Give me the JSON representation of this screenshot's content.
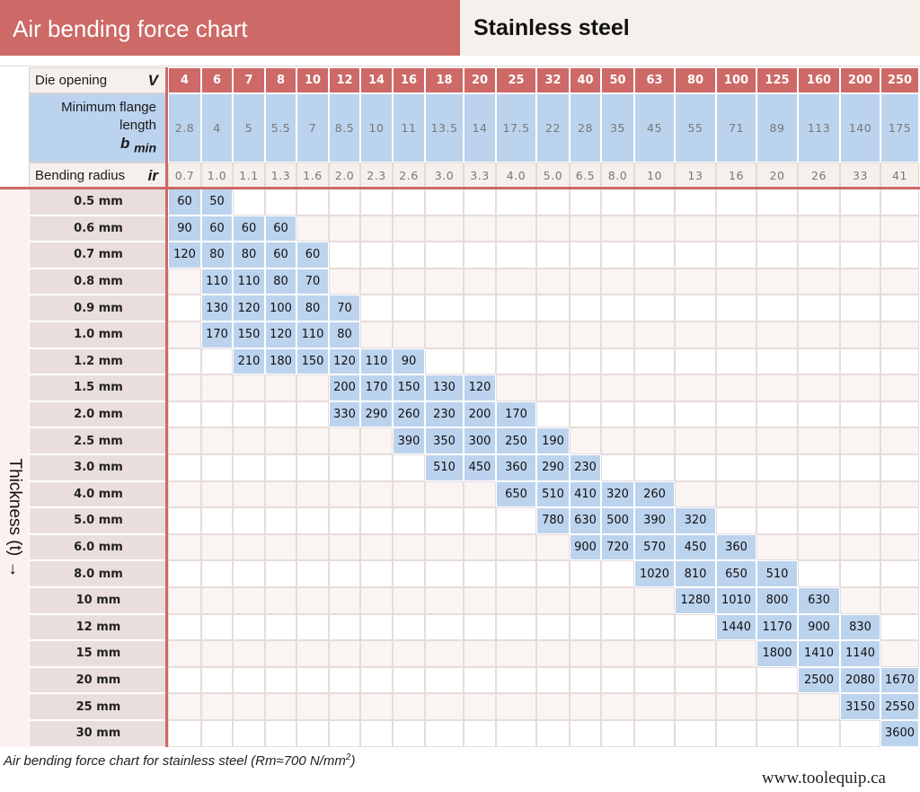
{
  "header": {
    "title": "Air bending force chart",
    "material": "Stainless steel"
  },
  "row_labels": {
    "die_opening": "Die opening",
    "die_opening_symbol": "V",
    "flange_line1": "Minimum flange",
    "flange_line2": "length",
    "flange_symbol": "b",
    "flange_symbol_sub": "min",
    "bending_radius": "Bending radius",
    "bending_radius_symbol": "ir"
  },
  "axis_label": "Thickness (t) →",
  "caption": {
    "text": "Air bending force chart for stainless steel (Rm≈700 N/mm",
    "superscript": "2",
    "closing": ")"
  },
  "brand": "www.toolequip.ca",
  "colors": {
    "accent_red": "#cd6966",
    "value_blue": "#bcd3ee",
    "header_beige": "#f6f0ec",
    "thickness_bg": "#e9dedc"
  },
  "chart_data": {
    "type": "table",
    "title": "Air bending force chart",
    "subtitle": "Stainless steel",
    "die_openings": [
      "4",
      "6",
      "7",
      "8",
      "10",
      "12",
      "14",
      "16",
      "18",
      "20",
      "25",
      "32",
      "40",
      "50",
      "63",
      "80",
      "100",
      "125",
      "160",
      "200",
      "250"
    ],
    "min_flange_length": [
      "2.8",
      "4",
      "5",
      "5.5",
      "7",
      "8.5",
      "10",
      "11",
      "13.5",
      "14",
      "17.5",
      "22",
      "28",
      "35",
      "45",
      "55",
      "71",
      "89",
      "113",
      "140",
      "175"
    ],
    "bending_radius": [
      "0.7",
      "1.0",
      "1.1",
      "1.3",
      "1.6",
      "2.0",
      "2.3",
      "2.6",
      "3.0",
      "3.3",
      "4.0",
      "5.0",
      "6.5",
      "8.0",
      "10",
      "13",
      "16",
      "20",
      "26",
      "33",
      "41"
    ],
    "rows": [
      {
        "thickness": "0.5 mm",
        "start": 0,
        "values": [
          "60",
          "50"
        ]
      },
      {
        "thickness": "0.6 mm",
        "start": 0,
        "values": [
          "90",
          "60",
          "60",
          "60"
        ]
      },
      {
        "thickness": "0.7 mm",
        "start": 0,
        "values": [
          "120",
          "80",
          "80",
          "60",
          "60"
        ]
      },
      {
        "thickness": "0.8 mm",
        "start": 1,
        "values": [
          "110",
          "110",
          "80",
          "70"
        ]
      },
      {
        "thickness": "0.9 mm",
        "start": 1,
        "values": [
          "130",
          "120",
          "100",
          "80",
          "70"
        ]
      },
      {
        "thickness": "1.0 mm",
        "start": 1,
        "values": [
          "170",
          "150",
          "120",
          "110",
          "80"
        ]
      },
      {
        "thickness": "1.2 mm",
        "start": 2,
        "values": [
          "210",
          "180",
          "150",
          "120",
          "110",
          "90"
        ]
      },
      {
        "thickness": "1.5 mm",
        "start": 5,
        "values": [
          "200",
          "170",
          "150",
          "130",
          "120"
        ]
      },
      {
        "thickness": "2.0 mm",
        "start": 5,
        "values": [
          "330",
          "290",
          "260",
          "230",
          "200",
          "170"
        ]
      },
      {
        "thickness": "2.5 mm",
        "start": 7,
        "values": [
          "390",
          "350",
          "300",
          "250",
          "190"
        ]
      },
      {
        "thickness": "3.0 mm",
        "start": 8,
        "values": [
          "510",
          "450",
          "360",
          "290",
          "230"
        ]
      },
      {
        "thickness": "4.0 mm",
        "start": 10,
        "values": [
          "650",
          "510",
          "410",
          "320",
          "260"
        ]
      },
      {
        "thickness": "5.0 mm",
        "start": 11,
        "values": [
          "780",
          "630",
          "500",
          "390",
          "320"
        ]
      },
      {
        "thickness": "6.0 mm",
        "start": 12,
        "values": [
          "900",
          "720",
          "570",
          "450",
          "360"
        ]
      },
      {
        "thickness": "8.0 mm",
        "start": 14,
        "values": [
          "1020",
          "810",
          "650",
          "510"
        ]
      },
      {
        "thickness": "10 mm",
        "start": 15,
        "values": [
          "1280",
          "1010",
          "800",
          "630"
        ]
      },
      {
        "thickness": "12 mm",
        "start": 16,
        "values": [
          "1440",
          "1170",
          "900",
          "830"
        ]
      },
      {
        "thickness": "15 mm",
        "start": 17,
        "values": [
          "1800",
          "1410",
          "1140"
        ]
      },
      {
        "thickness": "20 mm",
        "start": 18,
        "values": [
          "2500",
          "2080",
          "1670"
        ]
      },
      {
        "thickness": "25 mm",
        "start": 19,
        "values": [
          "3150",
          "2550"
        ]
      },
      {
        "thickness": "30 mm",
        "start": 20,
        "values": [
          "3600"
        ]
      }
    ]
  }
}
